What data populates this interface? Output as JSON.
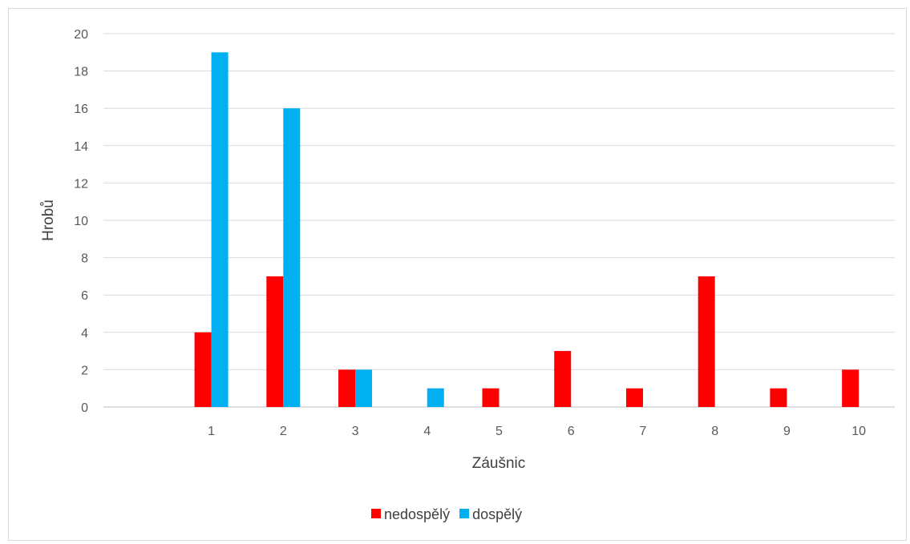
{
  "chart_data": {
    "type": "bar",
    "categories": [
      "",
      "1",
      "2",
      "3",
      "4",
      "5",
      "6",
      "7",
      "8",
      "9",
      "10"
    ],
    "series": [
      {
        "name": "nedospělý",
        "color": "#ff0000",
        "values": [
          0,
          4,
          7,
          2,
          0,
          1,
          3,
          1,
          7,
          1,
          2
        ]
      },
      {
        "name": "dospělý",
        "color": "#00b0f0",
        "values": [
          0,
          19,
          16,
          2,
          1,
          0,
          0,
          0,
          0,
          0,
          0
        ]
      }
    ],
    "title": "",
    "xlabel": "Záušnic",
    "ylabel": "Hrobů",
    "ylim": [
      0,
      20
    ],
    "yticks": [
      0,
      2,
      4,
      6,
      8,
      10,
      12,
      14,
      16,
      18,
      20
    ],
    "grid": true,
    "legend_position": "bottom"
  }
}
